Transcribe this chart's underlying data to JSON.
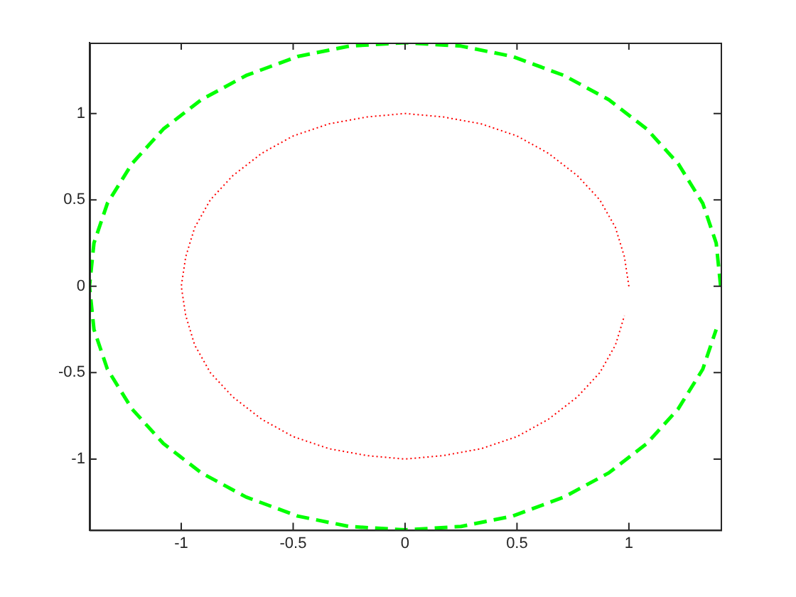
{
  "chart_data": {
    "type": "line",
    "xlim": [
      -1.41,
      1.41
    ],
    "ylim": [
      -1.41,
      1.41
    ],
    "xticks": [
      -1,
      -0.5,
      0,
      0.5,
      1
    ],
    "yticks": [
      -1,
      -0.5,
      0,
      0.5,
      1
    ],
    "grid": false,
    "legend": false,
    "marker": "none",
    "series": [
      {
        "color": "#ff0000",
        "line_style": "dotted",
        "x": [
          1,
          0.98,
          0.94,
          0.87,
          0.77,
          0.64,
          0.5,
          0.34,
          0.17,
          0,
          -0.17,
          -0.34,
          -0.5,
          -0.64,
          -0.77,
          -0.87,
          -0.94,
          -0.98,
          -1,
          -0.98,
          -0.94,
          -0.87,
          -0.77,
          -0.64,
          -0.5,
          -0.34,
          -0.17,
          0,
          0.17,
          0.34,
          0.5,
          0.64,
          0.77,
          0.87,
          0.94,
          0.98
        ],
        "values": [
          0,
          0.17,
          0.34,
          0.5,
          0.64,
          0.77,
          0.87,
          0.94,
          0.98,
          1,
          0.98,
          0.94,
          0.87,
          0.77,
          0.64,
          0.5,
          0.34,
          0.17,
          0,
          -0.17,
          -0.34,
          -0.5,
          -0.64,
          -0.77,
          -0.87,
          -0.94,
          -0.98,
          -1,
          -0.98,
          -0.94,
          -0.87,
          -0.77,
          -0.64,
          -0.5,
          -0.34,
          -0.17
        ]
      },
      {
        "color": "#00ff00",
        "line_style": "dashed",
        "x": [
          1.41,
          1.39,
          1.33,
          1.22,
          1.08,
          0.91,
          0.71,
          0.48,
          0.25,
          0,
          -0.25,
          -0.48,
          -0.71,
          -0.91,
          -1.08,
          -1.22,
          -1.33,
          -1.39,
          -1.41,
          -1.39,
          -1.33,
          -1.22,
          -1.08,
          -0.91,
          -0.71,
          -0.48,
          -0.25,
          0,
          0.25,
          0.48,
          0.71,
          0.91,
          1.08,
          1.22,
          1.33,
          1.39
        ],
        "values": [
          0,
          0.25,
          0.48,
          0.71,
          0.91,
          1.08,
          1.22,
          1.33,
          1.39,
          1.41,
          1.39,
          1.33,
          1.22,
          1.08,
          0.91,
          0.71,
          0.48,
          0.25,
          0,
          -0.25,
          -0.48,
          -0.71,
          -0.91,
          -1.08,
          -1.22,
          -1.33,
          -1.39,
          -1.41,
          -1.39,
          -1.33,
          -1.22,
          -1.08,
          -0.91,
          -0.71,
          -0.48,
          -0.25
        ]
      }
    ]
  }
}
